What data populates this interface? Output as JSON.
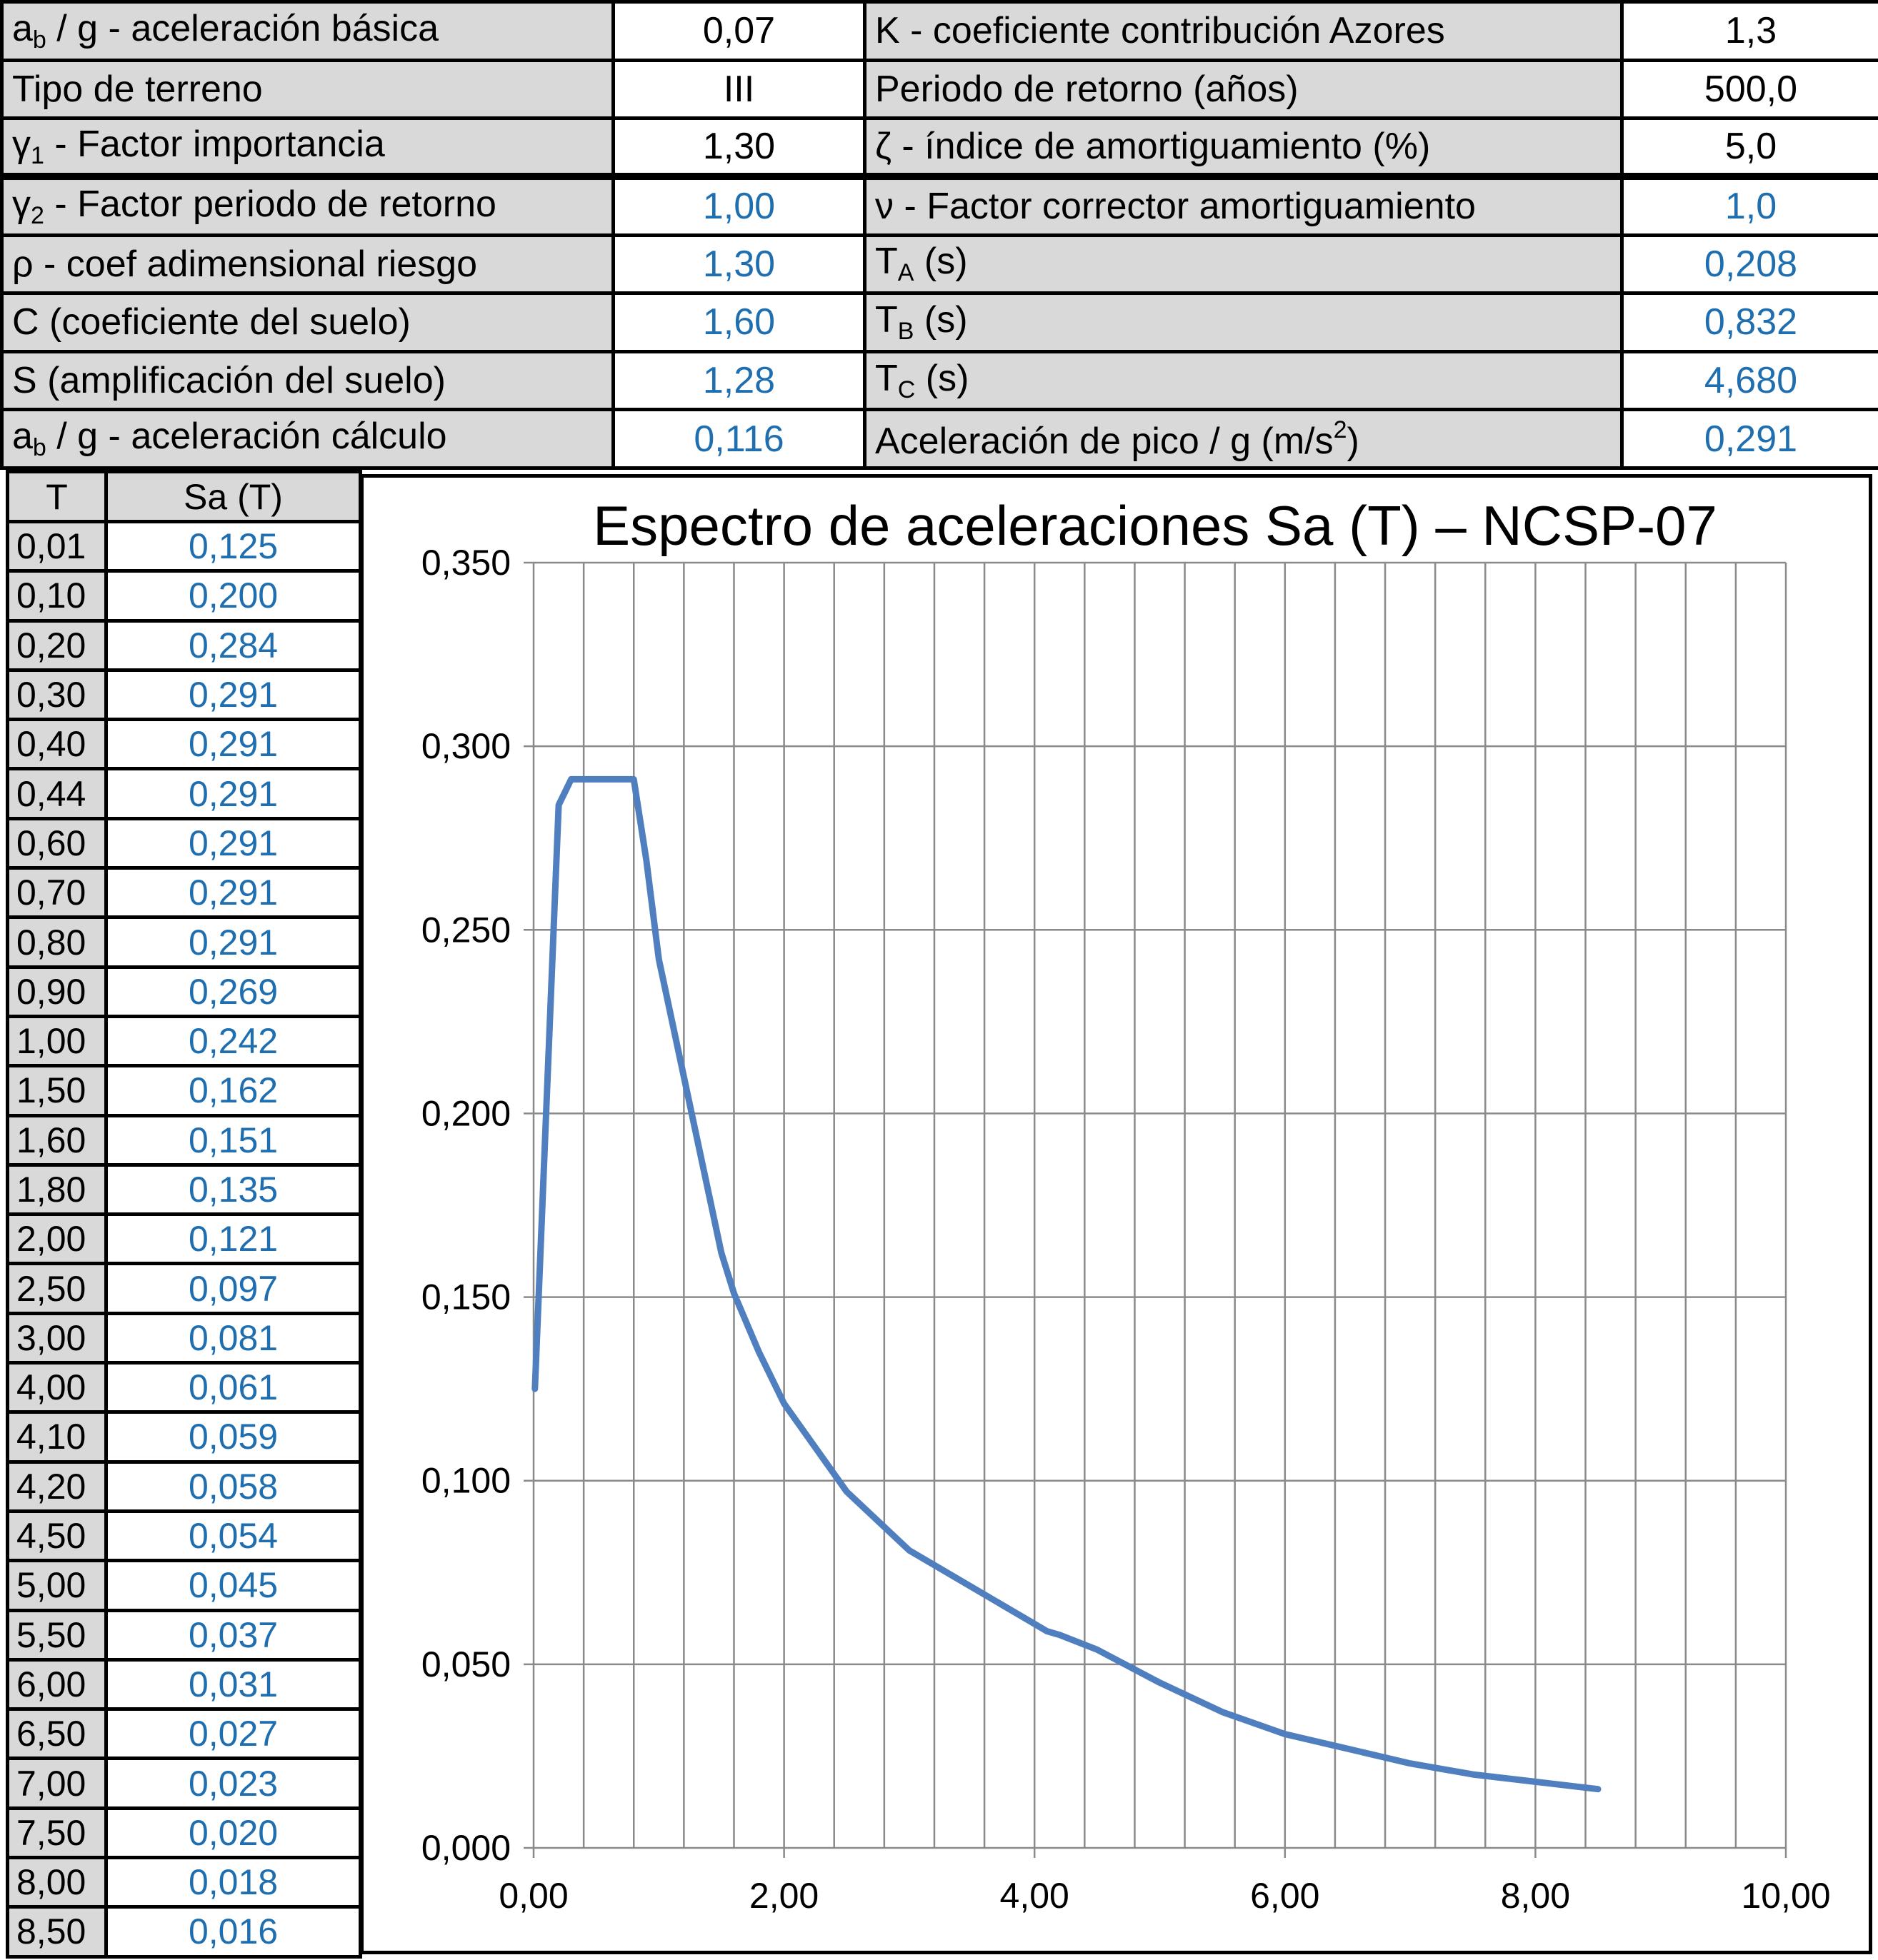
{
  "params": {
    "rows": [
      {
        "l1": "a_b / g - aceleración básica",
        "v1": "0,07",
        "l2": "K - coeficiente contribución Azores",
        "v2": "1,3"
      },
      {
        "l1": "Tipo de terreno",
        "v1": "III",
        "l2": "Periodo de retorno (años)",
        "v2": "500,0"
      },
      {
        "l1": "γ1 - Factor importancia",
        "v1": "1,30",
        "l2": "ζ - índice de amortiguamiento (%)",
        "v2": "5,0"
      },
      {
        "l1": "γ2 - Factor periodo de retorno",
        "v1": "1,00",
        "l2": "ν - Factor corrector amortiguamiento",
        "v2": "1,0"
      },
      {
        "l1": "ρ - coef adimensional riesgo",
        "v1": "1,30",
        "l2": "TA (s)",
        "v2": "0,208"
      },
      {
        "l1": "C (coeficiente del suelo)",
        "v1": "1,60",
        "l2": "TB (s)",
        "v2": "0,832"
      },
      {
        "l1": "S (amplificación del suelo)",
        "v1": "1,28",
        "l2": "TC (s)",
        "v2": "4,680"
      },
      {
        "l1": "a_b / g - aceleración cálculo",
        "v1": "0,116",
        "l2": "Aceleración de pico / g (m/s2)",
        "v2": "0,291"
      }
    ]
  },
  "sa_table": {
    "col_t": "T",
    "col_sa": "Sa (T)",
    "rows": [
      {
        "t": "0,01",
        "sa": "0,125"
      },
      {
        "t": "0,10",
        "sa": "0,200"
      },
      {
        "t": "0,20",
        "sa": "0,284"
      },
      {
        "t": "0,30",
        "sa": "0,291"
      },
      {
        "t": "0,40",
        "sa": "0,291"
      },
      {
        "t": "0,44",
        "sa": "0,291"
      },
      {
        "t": "0,60",
        "sa": "0,291"
      },
      {
        "t": "0,70",
        "sa": "0,291"
      },
      {
        "t": "0,80",
        "sa": "0,291"
      },
      {
        "t": "0,90",
        "sa": "0,269"
      },
      {
        "t": "1,00",
        "sa": "0,242"
      },
      {
        "t": "1,50",
        "sa": "0,162"
      },
      {
        "t": "1,60",
        "sa": "0,151"
      },
      {
        "t": "1,80",
        "sa": "0,135"
      },
      {
        "t": "2,00",
        "sa": "0,121"
      },
      {
        "t": "2,50",
        "sa": "0,097"
      },
      {
        "t": "3,00",
        "sa": "0,081"
      },
      {
        "t": "4,00",
        "sa": "0,061"
      },
      {
        "t": "4,10",
        "sa": "0,059"
      },
      {
        "t": "4,20",
        "sa": "0,058"
      },
      {
        "t": "4,50",
        "sa": "0,054"
      },
      {
        "t": "5,00",
        "sa": "0,045"
      },
      {
        "t": "5,50",
        "sa": "0,037"
      },
      {
        "t": "6,00",
        "sa": "0,031"
      },
      {
        "t": "6,50",
        "sa": "0,027"
      },
      {
        "t": "7,00",
        "sa": "0,023"
      },
      {
        "t": "7,50",
        "sa": "0,020"
      },
      {
        "t": "8,00",
        "sa": "0,018"
      },
      {
        "t": "8,50",
        "sa": "0,016"
      }
    ]
  },
  "chart_data": {
    "type": "line",
    "title": "Espectro de aceleraciones Sa (T) – NCSP-07",
    "xlabel": "",
    "ylabel": "",
    "xlim": [
      0,
      10
    ],
    "ylim": [
      0,
      0.35
    ],
    "x_ticks": [
      "0,00",
      "2,00",
      "4,00",
      "6,00",
      "8,00",
      "10,00"
    ],
    "y_ticks": [
      "0,000",
      "0,050",
      "0,100",
      "0,150",
      "0,200",
      "0,250",
      "0,300",
      "0,350"
    ],
    "grid": true,
    "legend": "none",
    "series": [
      {
        "color": "#4f7fbf",
        "x": [
          0.01,
          0.1,
          0.2,
          0.3,
          0.4,
          0.44,
          0.6,
          0.7,
          0.8,
          0.9,
          1.0,
          1.5,
          1.6,
          1.8,
          2.0,
          2.5,
          3.0,
          4.0,
          4.1,
          4.2,
          4.5,
          5.0,
          5.5,
          6.0,
          6.5,
          7.0,
          7.5,
          8.0,
          8.5
        ],
        "y": [
          0.125,
          0.2,
          0.284,
          0.291,
          0.291,
          0.291,
          0.291,
          0.291,
          0.291,
          0.269,
          0.242,
          0.162,
          0.151,
          0.135,
          0.121,
          0.097,
          0.081,
          0.061,
          0.059,
          0.058,
          0.054,
          0.045,
          0.037,
          0.031,
          0.027,
          0.023,
          0.02,
          0.018,
          0.016
        ]
      }
    ]
  }
}
